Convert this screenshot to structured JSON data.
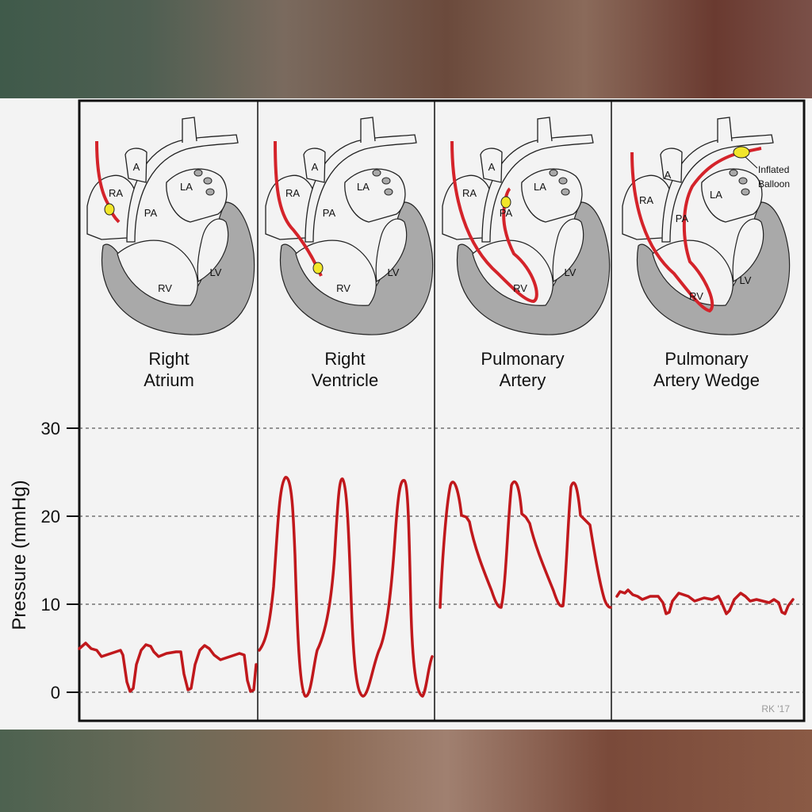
{
  "panels": [
    {
      "title_line1": "Right",
      "title_line2": "Atrium"
    },
    {
      "title_line1": "Right",
      "title_line2": "Ventricle"
    },
    {
      "title_line1": "Pulmonary",
      "title_line2": "Artery"
    },
    {
      "title_line1": "Pulmonary",
      "title_line2": "Artery Wedge"
    }
  ],
  "heart_labels": {
    "a": "A",
    "ra": "RA",
    "la": "LA",
    "pa": "PA",
    "rv": "RV",
    "lv": "LV"
  },
  "balloon_label_line1": "Inflated",
  "balloon_label_line2": "Balloon",
  "y_axis_label": "Pressure (mmHg)",
  "y_ticks": [
    "30",
    "20",
    "10",
    "0"
  ],
  "signature": "RK '17",
  "colors": {
    "waveform": "#c0181c",
    "heart": "#a9a9a9",
    "balloon": "#f2e62a"
  }
}
